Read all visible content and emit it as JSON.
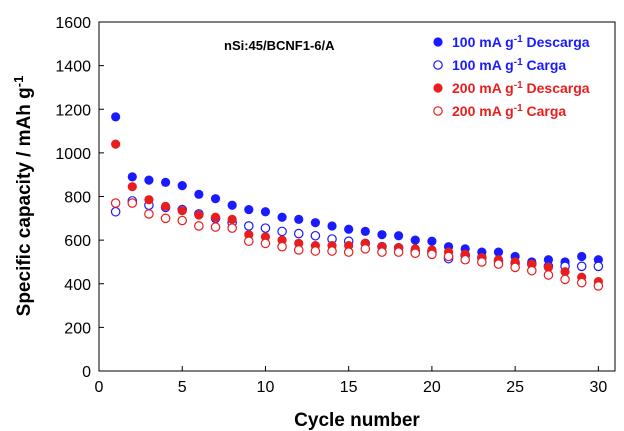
{
  "chart_data": {
    "type": "scatter",
    "title": "",
    "annotation": "nSi:45/BCNF1-6/A",
    "xlabel": "Cycle number",
    "ylabel": "Specific capacity / mAh g",
    "ylabel_sup": "-1",
    "xlim": [
      0,
      31
    ],
    "ylim": [
      0,
      1600
    ],
    "xticks": [
      0,
      5,
      10,
      15,
      20,
      25,
      30
    ],
    "yticks": [
      0,
      200,
      400,
      600,
      800,
      1000,
      1200,
      1400,
      1600
    ],
    "grid": false,
    "legend_position": "top-right",
    "series": [
      {
        "name": "100 mA g-1 Descarga",
        "legend": {
          "pre": "100 mA g",
          "sup": "-1",
          "post": " Descarga"
        },
        "color": "#1a1aff",
        "marker": "filled-circle",
        "x": [
          1,
          2,
          3,
          4,
          5,
          6,
          7,
          8,
          9,
          10,
          11,
          12,
          13,
          14,
          15,
          16,
          17,
          18,
          19,
          20,
          21,
          22,
          23,
          24,
          25,
          26,
          27,
          28,
          29,
          30
        ],
        "y": [
          1165,
          890,
          875,
          865,
          850,
          810,
          790,
          760,
          740,
          730,
          705,
          695,
          680,
          665,
          650,
          640,
          625,
          620,
          600,
          595,
          570,
          560,
          545,
          545,
          525,
          500,
          510,
          500,
          525,
          510
        ]
      },
      {
        "name": "100 mA g-1 Carga",
        "legend": {
          "pre": "100 mA g",
          "sup": "-1",
          "post": " Carga"
        },
        "color": "#1a1aff",
        "marker": "open-circle",
        "x": [
          1,
          2,
          3,
          4,
          5,
          6,
          7,
          8,
          9,
          10,
          11,
          12,
          13,
          14,
          15,
          16,
          17,
          18,
          19,
          20,
          21,
          22,
          23,
          24,
          25,
          26,
          27,
          28,
          29,
          30
        ],
        "y": [
          730,
          780,
          760,
          750,
          740,
          720,
          700,
          680,
          665,
          655,
          640,
          630,
          620,
          605,
          595,
          585,
          570,
          565,
          550,
          545,
          515,
          530,
          520,
          505,
          495,
          490,
          480,
          480,
          480,
          480
        ]
      },
      {
        "name": "200 mA g-1 Descarga",
        "legend": {
          "pre": "200 mA g",
          "sup": "-1",
          "post": " Descarga"
        },
        "color": "#e81e1e",
        "marker": "filled-circle",
        "x": [
          1,
          2,
          3,
          4,
          5,
          6,
          7,
          8,
          9,
          10,
          11,
          12,
          13,
          14,
          15,
          16,
          17,
          18,
          19,
          20,
          21,
          22,
          23,
          24,
          25,
          26,
          27,
          28,
          29,
          30
        ],
        "y": [
          1040,
          845,
          785,
          755,
          735,
          715,
          705,
          695,
          625,
          615,
          600,
          585,
          575,
          575,
          575,
          585,
          570,
          565,
          560,
          555,
          545,
          535,
          520,
          510,
          500,
          490,
          475,
          455,
          430,
          410
        ]
      },
      {
        "name": "200 mA g-1 Carga",
        "legend": {
          "pre": "200 mA g",
          "sup": "-1",
          "post": " Carga"
        },
        "color": "#e81e1e",
        "marker": "open-circle",
        "x": [
          1,
          2,
          3,
          4,
          5,
          6,
          7,
          8,
          9,
          10,
          11,
          12,
          13,
          14,
          15,
          16,
          17,
          18,
          19,
          20,
          21,
          22,
          23,
          24,
          25,
          26,
          27,
          28,
          29,
          30
        ],
        "y": [
          770,
          770,
          720,
          700,
          690,
          665,
          660,
          655,
          595,
          585,
          570,
          555,
          550,
          550,
          545,
          560,
          545,
          545,
          540,
          535,
          525,
          510,
          500,
          490,
          475,
          460,
          440,
          420,
          405,
          390
        ]
      }
    ]
  }
}
